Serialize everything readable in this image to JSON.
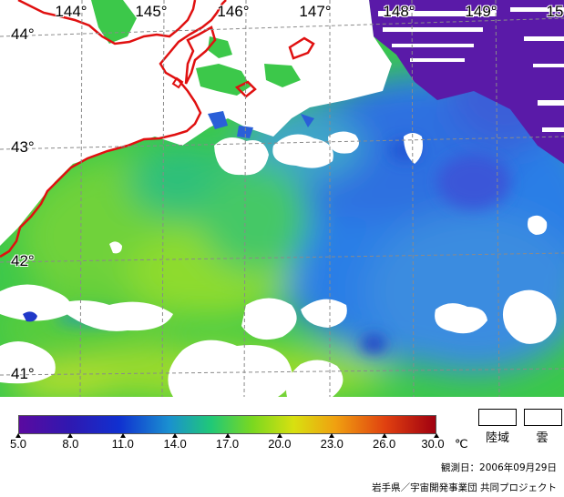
{
  "map": {
    "longitude_labels": [
      "144°",
      "145°",
      "146°",
      "147°",
      "148°",
      "149°",
      "15"
    ],
    "latitude_labels": [
      "44°",
      "43°",
      "42°",
      "41°"
    ]
  },
  "legend": {
    "ticks": [
      "5.0",
      "8.0",
      "11.0",
      "14.0",
      "17.0",
      "20.0",
      "23.0",
      "26.0",
      "30.0"
    ],
    "unit": "℃",
    "land_label": "陸域",
    "cloud_label": "雲",
    "colors": {
      "land": "#ffffff",
      "cloud": "#ffffff",
      "coastline": "#e01010"
    }
  },
  "observation_date": "観測日：2006年09月29日",
  "credit": "岩手県／宇宙開発事業団 共同プロジェクト"
}
